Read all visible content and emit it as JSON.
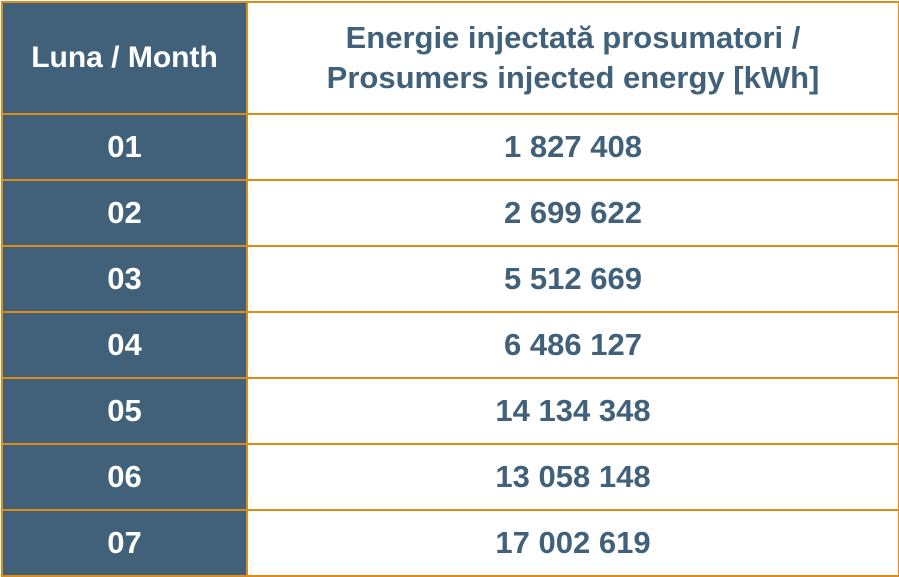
{
  "chart_data": {
    "type": "table",
    "columns": [
      "Luna / Month",
      "Energie injectată prosumatori / Prosumers injected energy [kWh]"
    ],
    "header": {
      "month": "Luna / Month",
      "energy_line1": "Energie injectată prosumatori /",
      "energy_line2": "Prosumers injected energy [kWh]"
    },
    "rows": [
      {
        "month": "01",
        "energy": "1 827 408"
      },
      {
        "month": "02",
        "energy": "2 699 622"
      },
      {
        "month": "03",
        "energy": "5 512 669"
      },
      {
        "month": "04",
        "energy": "6 486 127"
      },
      {
        "month": "05",
        "energy": "14 134 348"
      },
      {
        "month": "06",
        "energy": "13 058 148"
      },
      {
        "month": "07",
        "energy": "17 002 619"
      }
    ],
    "colors": {
      "header_fill": "#41617a",
      "text_dark": "#41617a",
      "border": "#e08a1a",
      "background": "#ffffff"
    }
  }
}
